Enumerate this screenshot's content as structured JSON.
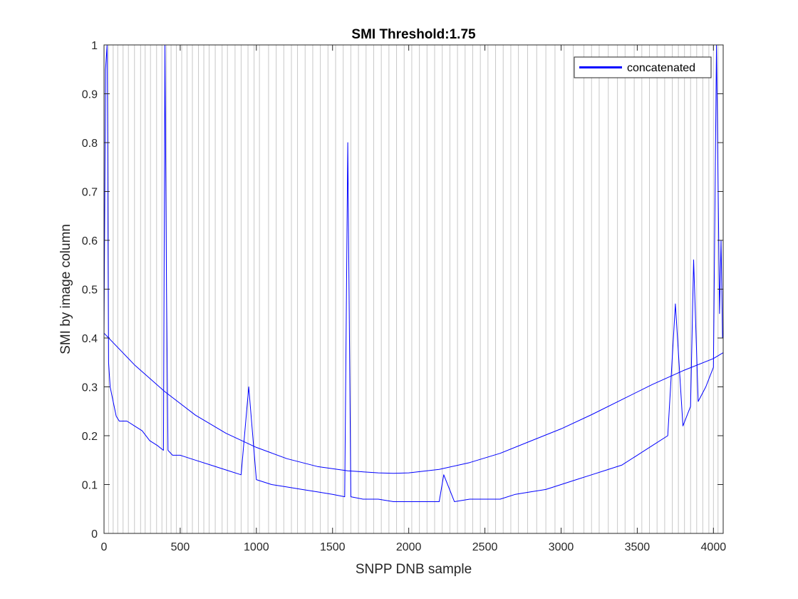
{
  "figure": {
    "background": "#ffffff"
  },
  "chart_data": {
    "type": "line",
    "title": "SMI Threshold:1.75",
    "xlabel": "SNPP DNB sample",
    "ylabel": "SMI by image column",
    "xlim": [
      0,
      4064
    ],
    "ylim": [
      0,
      1
    ],
    "x_ticks": [
      0,
      500,
      1000,
      1500,
      2000,
      2500,
      3000,
      3500,
      4000
    ],
    "x_tick_labels": [
      "0",
      "500",
      "1000",
      "1500",
      "2000",
      "2500",
      "3000",
      "3500",
      "4000"
    ],
    "y_ticks": [
      0,
      0.1,
      0.2,
      0.3,
      0.4,
      0.5,
      0.6,
      0.7,
      0.8,
      0.9,
      1
    ],
    "y_tick_labels": [
      "0",
      "0.1",
      "0.2",
      "0.3",
      "0.4",
      "0.5",
      "0.6",
      "0.7",
      "0.8",
      "0.9",
      "1"
    ],
    "grid": false,
    "legend": {
      "position": "top-right",
      "entries": [
        "concatenated"
      ]
    },
    "series": [
      {
        "name": "concatenated",
        "color": "#0000ff",
        "x": [
          0,
          10,
          20,
          30,
          40,
          60,
          80,
          100,
          150,
          200,
          250,
          300,
          350,
          390,
          400,
          410,
          420,
          450,
          500,
          600,
          700,
          800,
          900,
          950,
          1000,
          1100,
          1200,
          1300,
          1400,
          1500,
          1580,
          1600,
          1620,
          1700,
          1800,
          1900,
          2000,
          2100,
          2200,
          2230,
          2300,
          2400,
          2500,
          2600,
          2700,
          2800,
          2900,
          3000,
          3100,
          3200,
          3300,
          3400,
          3500,
          3600,
          3700,
          3750,
          3800,
          3850,
          3870,
          3900,
          3950,
          4000,
          4020,
          4040,
          4050,
          4060
        ],
        "y": [
          0.4,
          0.95,
          1.0,
          0.35,
          0.3,
          0.27,
          0.24,
          0.23,
          0.23,
          0.22,
          0.21,
          0.19,
          0.18,
          0.17,
          1.0,
          0.5,
          0.17,
          0.16,
          0.16,
          0.15,
          0.14,
          0.13,
          0.12,
          0.3,
          0.11,
          0.1,
          0.095,
          0.09,
          0.085,
          0.08,
          0.075,
          0.8,
          0.075,
          0.07,
          0.07,
          0.065,
          0.065,
          0.065,
          0.065,
          0.12,
          0.065,
          0.07,
          0.07,
          0.07,
          0.08,
          0.085,
          0.09,
          0.1,
          0.11,
          0.12,
          0.13,
          0.14,
          0.16,
          0.18,
          0.2,
          0.47,
          0.22,
          0.26,
          0.56,
          0.27,
          0.3,
          0.34,
          1.0,
          0.45,
          0.6,
          0.4
        ]
      },
      {
        "name": "",
        "color": "#0000ff",
        "x": [
          0,
          200,
          400,
          600,
          800,
          1000,
          1200,
          1400,
          1600,
          1800,
          1900,
          2000,
          2200,
          2400,
          2600,
          2800,
          3000,
          3200,
          3400,
          3600,
          3800,
          4000,
          4064
        ],
        "y": [
          0.41,
          0.345,
          0.29,
          0.242,
          0.205,
          0.176,
          0.153,
          0.137,
          0.128,
          0.124,
          0.123,
          0.124,
          0.131,
          0.145,
          0.164,
          0.189,
          0.214,
          0.243,
          0.274,
          0.305,
          0.333,
          0.358,
          0.37
        ]
      }
    ],
    "vertical_reference_lines": {
      "color": "#c8c8c8",
      "x": [
        30,
        60,
        90,
        125,
        160,
        200,
        240,
        270,
        305,
        345,
        380,
        410,
        440,
        475,
        510,
        545,
        580,
        620,
        655,
        690,
        730,
        775,
        810,
        860,
        900,
        945,
        985,
        1020,
        1080,
        1130,
        1180,
        1230,
        1270,
        1320,
        1370,
        1420,
        1470,
        1520,
        1570,
        1620,
        1670,
        1720,
        1770,
        1820,
        1870,
        1920,
        1970,
        2020,
        2070,
        2120,
        2170,
        2220,
        2270,
        2320,
        2370,
        2420,
        2470,
        2520,
        2570,
        2620,
        2670,
        2720,
        2780,
        2840,
        2900,
        2960,
        3020,
        3080,
        3150,
        3200,
        3250,
        3310,
        3370,
        3420,
        3480,
        3530,
        3580,
        3630,
        3680,
        3730,
        3770,
        3810,
        3850,
        3890,
        3930,
        3970,
        4000,
        4030
      ]
    }
  }
}
